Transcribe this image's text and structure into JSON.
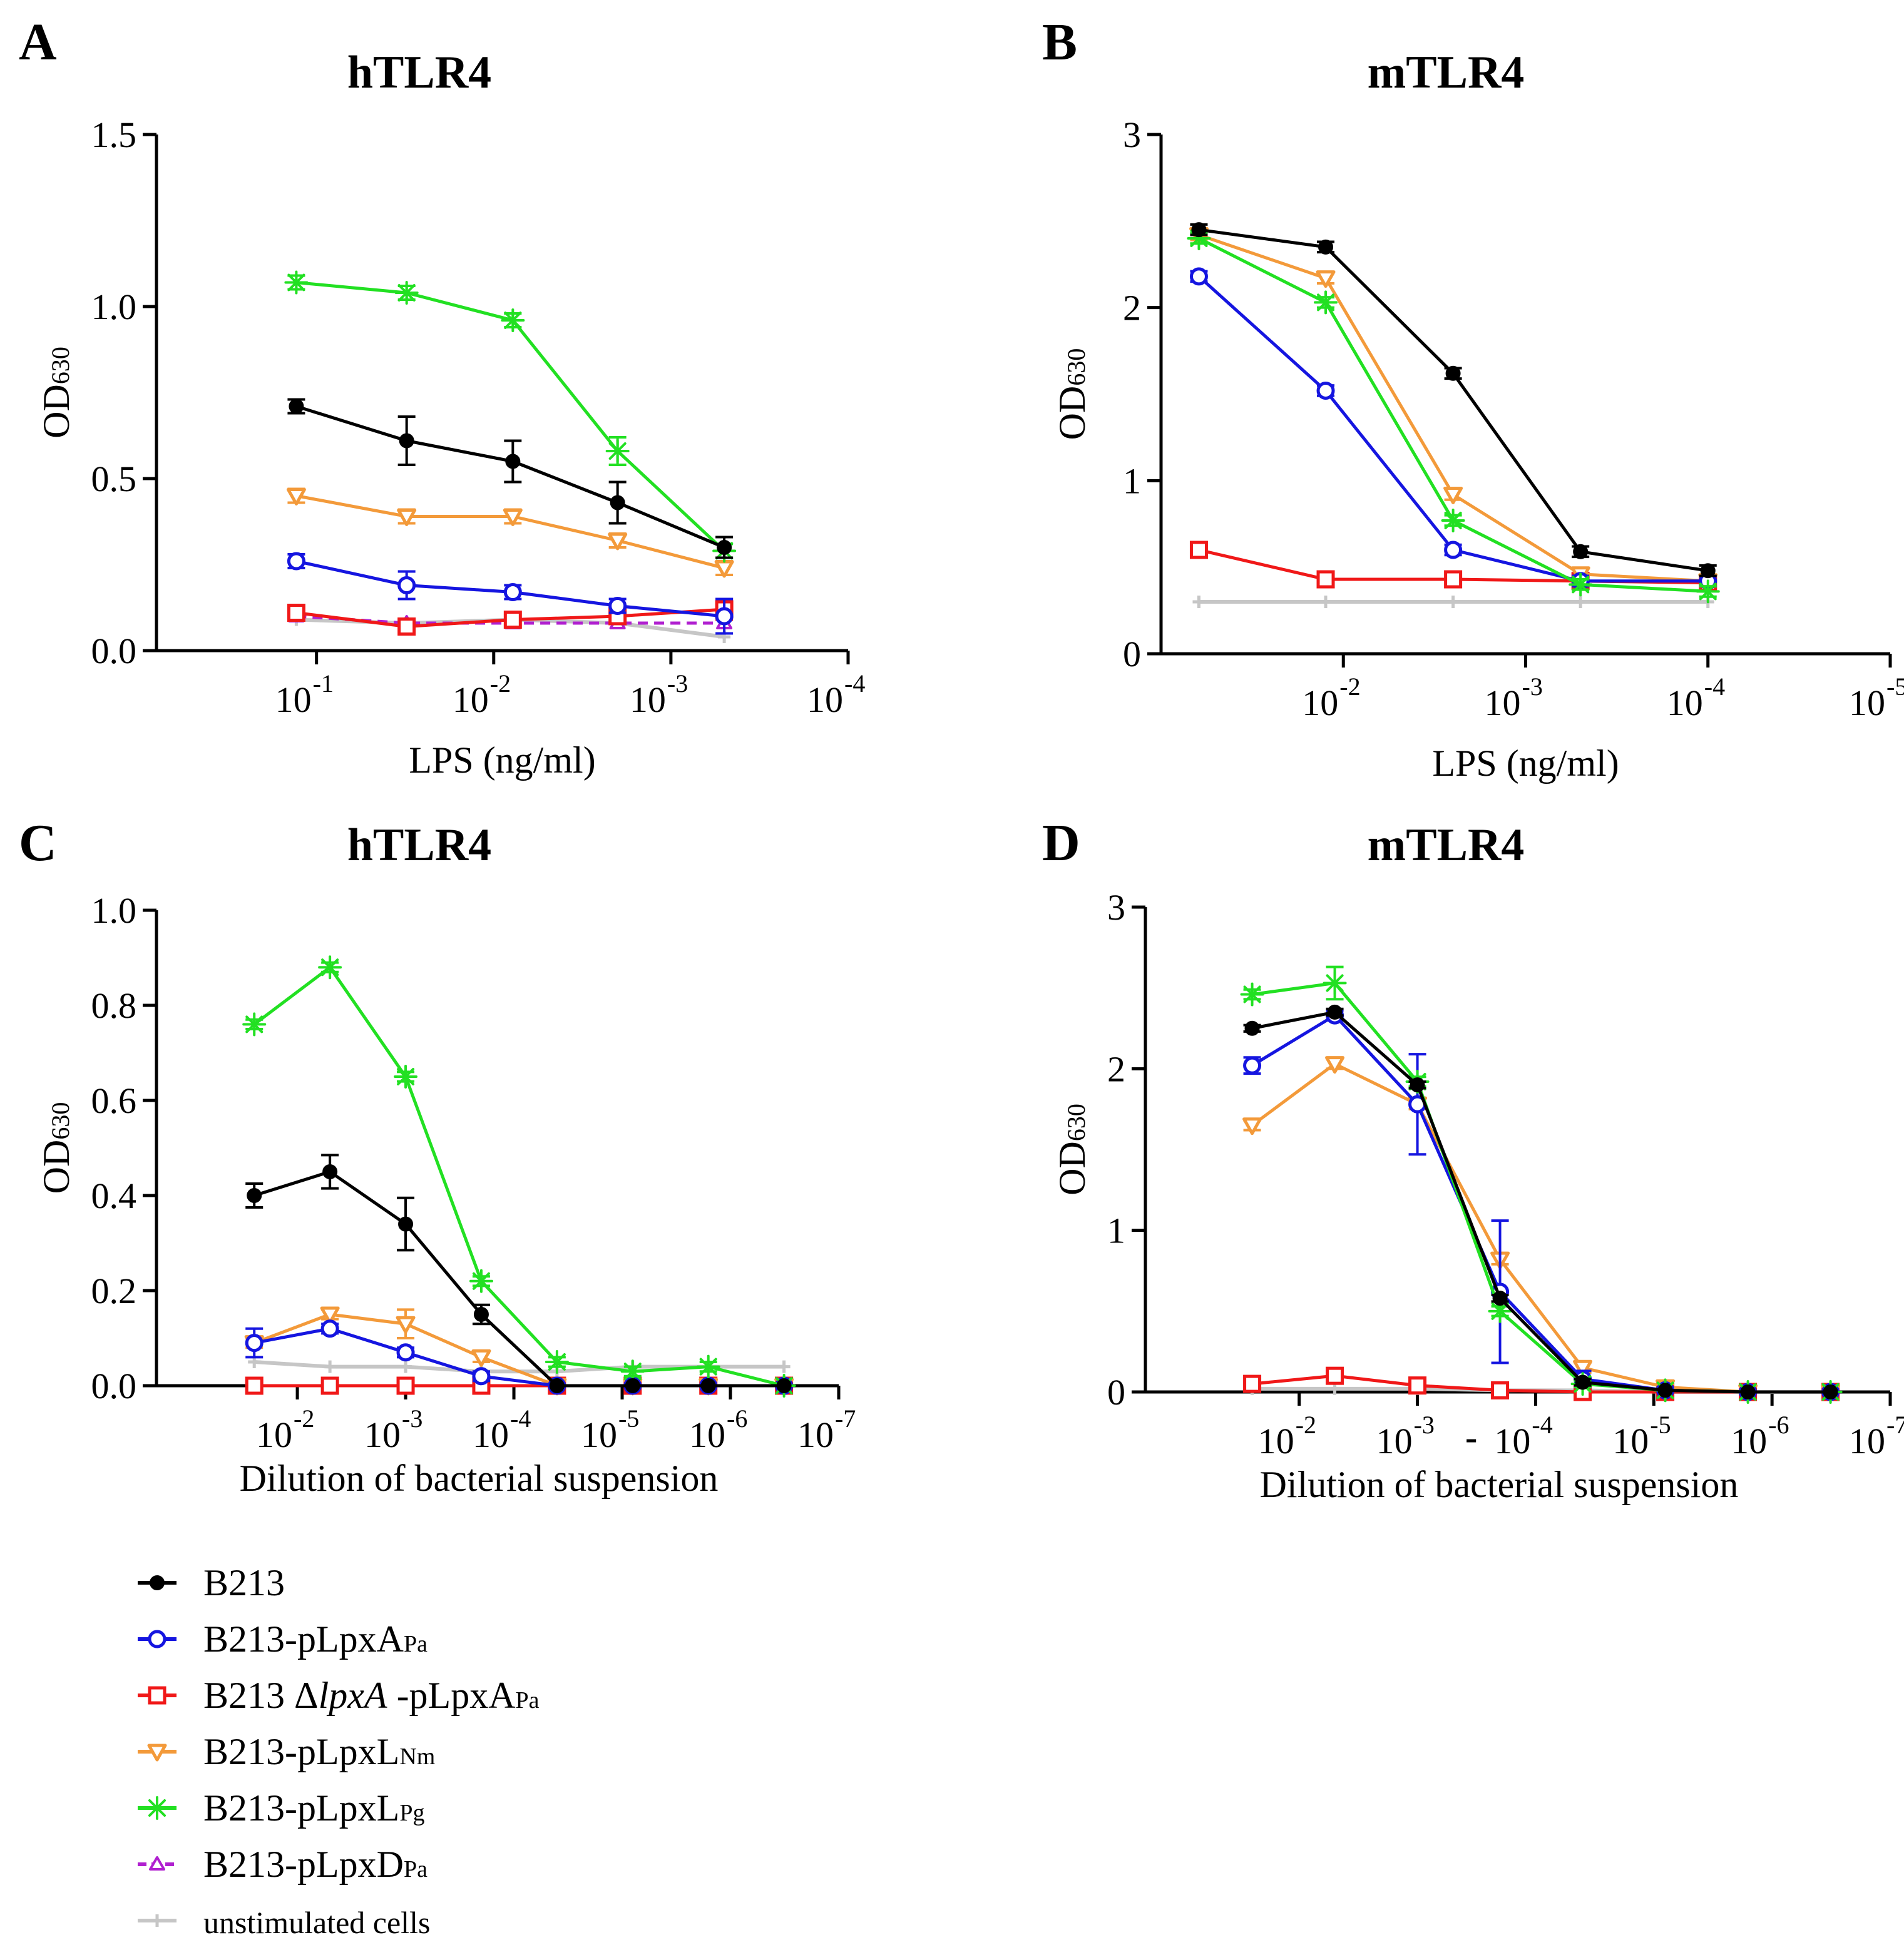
{
  "colors": {
    "B213": "#000000",
    "pLpxA": "#1515e0",
    "dlpxA": "#f01818",
    "pLpxLNm": "#f39a3a",
    "pLpxLPg": "#22e022",
    "pLpxD": "#b020d0",
    "unstim": "#c6c6c6"
  },
  "legend": [
    {
      "key": "B213",
      "marker": "filled-circle",
      "dashed": false,
      "text": "B213",
      "sub": "",
      "pre": "",
      "italic": "",
      "post": ""
    },
    {
      "key": "pLpxA",
      "marker": "open-circle",
      "dashed": false,
      "text": "B213-pLpxA",
      "sub": "Pa",
      "pre": "",
      "italic": "",
      "post": ""
    },
    {
      "key": "dlpxA",
      "marker": "open-square",
      "dashed": false,
      "text": "",
      "sub": "Pa",
      "pre": "B213 Δ",
      "italic": "lpxA",
      "post": " -pLpxA"
    },
    {
      "key": "pLpxLNm",
      "marker": "open-triangle-down",
      "dashed": false,
      "text": "B213-pLpxL",
      "sub": "Nm",
      "pre": "",
      "italic": "",
      "post": ""
    },
    {
      "key": "pLpxLPg",
      "marker": "star",
      "dashed": false,
      "text": "B213-pLpxL",
      "sub": "Pg",
      "pre": "",
      "italic": "",
      "post": ""
    },
    {
      "key": "pLpxD",
      "marker": "open-triangle-up",
      "dashed": true,
      "text": "B213-pLpxD",
      "sub": "Pa",
      "pre": "",
      "italic": "",
      "post": ""
    },
    {
      "key": "unstim",
      "marker": "plus",
      "dashed": false,
      "text": "unstimulated cells",
      "sub": "",
      "pre": "",
      "italic": "",
      "post": ""
    }
  ],
  "chart_data": [
    {
      "panel": "A",
      "title": "hTLR4",
      "type": "line",
      "xscale": "log-reversed",
      "xlabel": "LPS (ng/ml)",
      "ylabel": "OD",
      "ylabel_sub": "630",
      "xlim": [
        0.8,
        0.0001
      ],
      "ylim": [
        0,
        1.5
      ],
      "yticks": [
        {
          "v": 0,
          "label": "0.0"
        },
        {
          "v": 0.5,
          "label": "0.5"
        },
        {
          "v": 1.0,
          "label": "1.0"
        },
        {
          "v": 1.5,
          "label": "1.5"
        }
      ],
      "xticks": [
        {
          "v": 0.1,
          "base": "10",
          "exp": "-1"
        },
        {
          "v": 0.01,
          "base": "10",
          "exp": "-2"
        },
        {
          "v": 0.001,
          "base": "10",
          "exp": "-3"
        },
        {
          "v": 0.0001,
          "base": "10",
          "exp": "-4"
        }
      ],
      "x": [
        0.13,
        0.031,
        0.0078,
        0.002,
        0.0005
      ],
      "series": [
        {
          "key": "unstim",
          "values": [
            0.09,
            0.08,
            0.09,
            0.08,
            0.04
          ],
          "err": [
            0,
            0,
            0,
            0,
            0
          ]
        },
        {
          "key": "pLpxD",
          "values": [
            0.1,
            0.08,
            0.08,
            0.08,
            0.08
          ],
          "err": [
            0,
            0,
            0,
            0,
            0
          ]
        },
        {
          "key": "dlpxA",
          "values": [
            0.11,
            0.07,
            0.09,
            0.1,
            0.12
          ],
          "err": [
            0.02,
            0.02,
            0.02,
            0.02,
            0.03
          ]
        },
        {
          "key": "pLpxA",
          "values": [
            0.26,
            0.19,
            0.17,
            0.13,
            0.1
          ],
          "err": [
            0.02,
            0.04,
            0.02,
            0.02,
            0.05
          ]
        },
        {
          "key": "pLpxLNm",
          "values": [
            0.45,
            0.39,
            0.39,
            0.32,
            0.24
          ],
          "err": [
            0.02,
            0.02,
            0.02,
            0.02,
            0.02
          ]
        },
        {
          "key": "B213",
          "values": [
            0.71,
            0.61,
            0.55,
            0.43,
            0.3
          ],
          "err": [
            0.02,
            0.07,
            0.06,
            0.06,
            0.03
          ]
        },
        {
          "key": "pLpxLPg",
          "values": [
            1.07,
            1.04,
            0.96,
            0.58,
            0.29
          ],
          "err": [
            0.02,
            0.02,
            0.02,
            0.04,
            0.02
          ]
        }
      ]
    },
    {
      "panel": "B",
      "title": "mTLR4",
      "type": "line",
      "xscale": "log-reversed",
      "xlabel": "LPS (ng/ml)",
      "ylabel": "OD",
      "ylabel_sub": "630",
      "xlim": [
        0.1,
        1e-05
      ],
      "ylim": [
        0,
        3
      ],
      "yticks": [
        {
          "v": 0,
          "label": "0"
        },
        {
          "v": 1,
          "label": "1"
        },
        {
          "v": 2,
          "label": "2"
        },
        {
          "v": 3,
          "label": "3"
        }
      ],
      "xticks": [
        {
          "v": 0.01,
          "base": "10",
          "exp": "-2"
        },
        {
          "v": 0.001,
          "base": "10",
          "exp": "-3"
        },
        {
          "v": 0.0001,
          "base": "10",
          "exp": "-4"
        },
        {
          "v": 1e-05,
          "base": "10",
          "exp": "-5"
        }
      ],
      "x": [
        0.062,
        0.0125,
        0.0025,
        0.0005,
        0.0001
      ],
      "series": [
        {
          "key": "unstim",
          "values": [
            0.3,
            0.3,
            0.3,
            0.3,
            0.3
          ],
          "err": [
            0,
            0,
            0,
            0,
            0
          ]
        },
        {
          "key": "dlpxA",
          "values": [
            0.6,
            0.43,
            0.43,
            0.42,
            0.41
          ],
          "err": [
            0.03,
            0.03,
            0.03,
            0.03,
            0.03
          ]
        },
        {
          "key": "pLpxA",
          "values": [
            2.18,
            1.52,
            0.6,
            0.42,
            0.42
          ],
          "err": [
            0.03,
            0.03,
            0.03,
            0.03,
            0.03
          ]
        },
        {
          "key": "pLpxLNm",
          "values": [
            2.42,
            2.17,
            0.92,
            0.46,
            0.42
          ],
          "err": [
            0.03,
            0.03,
            0.03,
            0.03,
            0.03
          ]
        },
        {
          "key": "pLpxLPg",
          "values": [
            2.4,
            2.03,
            0.77,
            0.4,
            0.36
          ],
          "err": [
            0.03,
            0.03,
            0.03,
            0.03,
            0.03
          ]
        },
        {
          "key": "B213",
          "values": [
            2.45,
            2.35,
            1.62,
            0.59,
            0.48
          ],
          "err": [
            0.03,
            0.03,
            0.03,
            0.03,
            0.03
          ]
        }
      ]
    },
    {
      "panel": "C",
      "title": "hTLR4",
      "type": "line",
      "xscale": "log-reversed",
      "xlabel": "Dilution of bacterial suspension",
      "ylabel": "OD",
      "ylabel_sub": "630",
      "xlim": [
        0.2,
        1e-07
      ],
      "ylim": [
        0,
        1.0
      ],
      "yticks": [
        {
          "v": 0,
          "label": "0.0"
        },
        {
          "v": 0.2,
          "label": "0.2"
        },
        {
          "v": 0.4,
          "label": "0.4"
        },
        {
          "v": 0.6,
          "label": "0.6"
        },
        {
          "v": 0.8,
          "label": "0.8"
        },
        {
          "v": 1.0,
          "label": "1.0"
        }
      ],
      "xticks": [
        {
          "v": 0.01,
          "base": "10",
          "exp": "-2"
        },
        {
          "v": 0.001,
          "base": "10",
          "exp": "-3"
        },
        {
          "v": 0.0001,
          "base": "10",
          "exp": "-4"
        },
        {
          "v": 1e-05,
          "base": "10",
          "exp": "-5"
        },
        {
          "v": 1e-06,
          "base": "10",
          "exp": "-6"
        },
        {
          "v": 1e-07,
          "base": "10",
          "exp": "-7"
        }
      ],
      "x": [
        0.025,
        0.005,
        0.001,
        0.0002,
        4e-05,
        8e-06,
        1.6e-06,
        3.2e-07
      ],
      "series": [
        {
          "key": "unstim",
          "values": [
            0.05,
            0.04,
            0.04,
            0.03,
            0.03,
            0.04,
            0.04,
            0.04
          ],
          "err": [
            0,
            0,
            0,
            0,
            0,
            0,
            0,
            0
          ]
        },
        {
          "key": "dlpxA",
          "values": [
            0,
            0,
            0,
            0,
            0,
            0,
            0,
            0
          ],
          "err": [
            0,
            0,
            0,
            0,
            0,
            0,
            0,
            0
          ]
        },
        {
          "key": "pLpxA",
          "values": [
            0.09,
            0.12,
            0.07,
            0.02,
            0,
            0,
            0,
            0
          ],
          "err": [
            0.03,
            0.01,
            0.01,
            0.01,
            0,
            0,
            0,
            0
          ]
        },
        {
          "key": "pLpxLNm",
          "values": [
            0.09,
            0.15,
            0.13,
            0.06,
            0,
            0,
            0,
            0
          ],
          "err": [
            0.01,
            0.01,
            0.03,
            0.01,
            0,
            0,
            0,
            0
          ]
        },
        {
          "key": "pLpxLPg",
          "values": [
            0.76,
            0.88,
            0.65,
            0.22,
            0.05,
            0.03,
            0.04,
            0
          ],
          "err": [
            0.01,
            0.01,
            0.01,
            0.01,
            0.01,
            0.01,
            0.01,
            0
          ]
        },
        {
          "key": "B213",
          "values": [
            0.4,
            0.45,
            0.34,
            0.15,
            0,
            0,
            0,
            0
          ],
          "err": [
            0.025,
            0.035,
            0.055,
            0.02,
            0,
            0,
            0,
            0
          ]
        }
      ]
    },
    {
      "panel": "D",
      "title": "mTLR4",
      "type": "line",
      "xscale": "log-reversed",
      "xlabel": "Dilution of bacterial suspension",
      "ylabel": "OD",
      "ylabel_sub": "630",
      "xlim": [
        0.2,
        1e-07
      ],
      "ylim": [
        0,
        3
      ],
      "yticks": [
        {
          "v": 0,
          "label": "0"
        },
        {
          "v": 1,
          "label": "1"
        },
        {
          "v": 2,
          "label": "2"
        },
        {
          "v": 3,
          "label": "3"
        }
      ],
      "xticks": [
        {
          "v": 0.01,
          "base": "10",
          "exp": "-2"
        },
        {
          "v": 0.001,
          "base": "10",
          "exp": "-3"
        },
        {
          "v": 0.0001,
          "base": "10",
          "exp": "-4"
        },
        {
          "v": 1e-05,
          "base": "10",
          "exp": "-5"
        },
        {
          "v": 1e-06,
          "base": "10",
          "exp": "-6"
        },
        {
          "v": 1e-07,
          "base": "10",
          "exp": "-7"
        }
      ],
      "extra_label": {
        "text": "-",
        "v": 0.00035
      },
      "x": [
        0.025,
        0.005,
        0.001,
        0.0002,
        4e-05,
        8e-06,
        1.6e-06,
        3.2e-07
      ],
      "series": [
        {
          "key": "unstim",
          "values": [
            0.02,
            0.02,
            0.02,
            0.01,
            0.01,
            0,
            0,
            0
          ],
          "err": [
            0,
            0,
            0,
            0,
            0,
            0,
            0,
            0
          ]
        },
        {
          "key": "dlpxA",
          "values": [
            0.05,
            0.1,
            0.04,
            0.01,
            0,
            0,
            0,
            0
          ],
          "err": [
            0.02,
            0.02,
            0.02,
            0.02,
            0,
            0,
            0,
            0
          ]
        },
        {
          "key": "pLpxLNm",
          "values": [
            1.65,
            2.03,
            1.78,
            0.82,
            0.15,
            0.03,
            0,
            0
          ],
          "err": [
            0.03,
            0.03,
            0.03,
            0.03,
            0.03,
            0.02,
            0,
            0
          ]
        },
        {
          "key": "pLpxA",
          "values": [
            2.02,
            2.33,
            1.78,
            0.62,
            0.08,
            0.01,
            0,
            0
          ],
          "err": [
            0.05,
            0.03,
            0.31,
            0.44,
            0.05,
            0.02,
            0.01,
            0.01
          ]
        },
        {
          "key": "pLpxLPg",
          "values": [
            2.46,
            2.53,
            1.92,
            0.5,
            0.05,
            0.01,
            0,
            0
          ],
          "err": [
            0.03,
            0.1,
            0.03,
            0.03,
            0.02,
            0.01,
            0,
            0
          ]
        },
        {
          "key": "B213",
          "values": [
            2.25,
            2.35,
            1.9,
            0.58,
            0.06,
            0.01,
            0,
            0
          ],
          "err": [
            0.02,
            0.02,
            0.02,
            0.02,
            0.02,
            0.01,
            0,
            0
          ]
        }
      ]
    }
  ]
}
